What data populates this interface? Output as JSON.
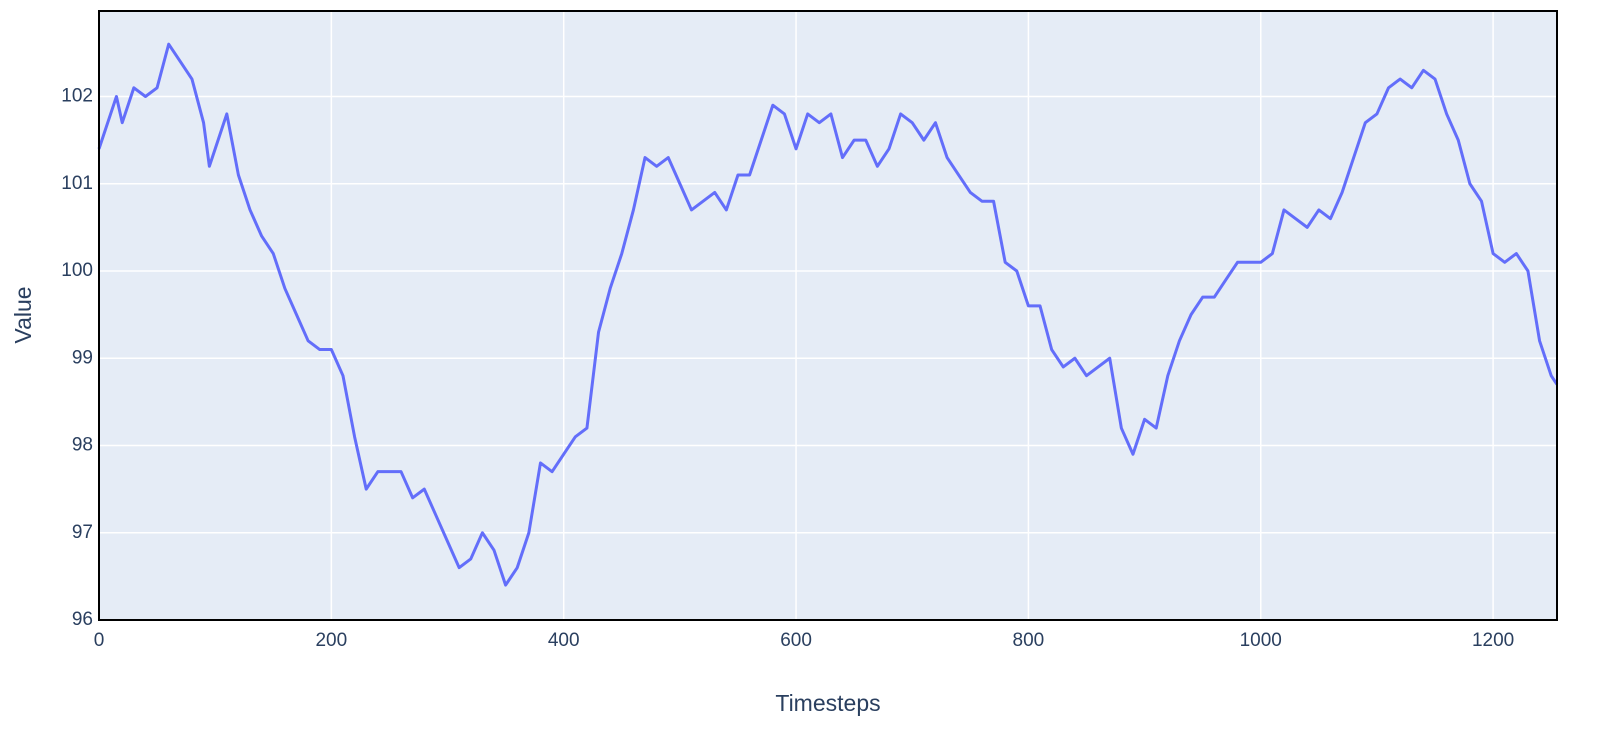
{
  "chart_data": {
    "type": "line",
    "x_label": "Timesteps",
    "y_label": "Value",
    "xlim": [
      0,
      1255
    ],
    "ylim": [
      96,
      102.98
    ],
    "xticks": [
      0,
      200,
      400,
      600,
      800,
      1000,
      1200
    ],
    "yticks": [
      96,
      97,
      98,
      99,
      100,
      101,
      102
    ],
    "grid": true,
    "series": [
      {
        "color": "#636efa",
        "x": [
          0,
          10,
          15,
          20,
          30,
          40,
          50,
          60,
          70,
          80,
          90,
          95,
          100,
          110,
          120,
          130,
          140,
          150,
          160,
          170,
          180,
          190,
          200,
          210,
          220,
          230,
          240,
          250,
          260,
          270,
          280,
          290,
          300,
          310,
          320,
          330,
          340,
          350,
          360,
          370,
          380,
          390,
          400,
          410,
          420,
          430,
          440,
          450,
          460,
          470,
          480,
          490,
          500,
          510,
          520,
          530,
          540,
          550,
          560,
          570,
          580,
          590,
          600,
          610,
          620,
          630,
          640,
          650,
          660,
          670,
          680,
          690,
          700,
          710,
          720,
          730,
          740,
          750,
          760,
          770,
          780,
          790,
          800,
          810,
          820,
          830,
          840,
          850,
          860,
          870,
          880,
          890,
          900,
          910,
          920,
          930,
          940,
          950,
          960,
          970,
          980,
          990,
          1000,
          1010,
          1020,
          1030,
          1040,
          1050,
          1060,
          1070,
          1080,
          1090,
          1100,
          1110,
          1120,
          1130,
          1140,
          1150,
          1160,
          1170,
          1180,
          1190,
          1200,
          1210,
          1220,
          1230,
          1240,
          1250,
          1255
        ],
        "values": [
          101.4,
          101.8,
          102.0,
          101.7,
          102.1,
          102.0,
          102.1,
          102.6,
          102.4,
          102.2,
          101.7,
          101.2,
          101.4,
          101.8,
          101.1,
          100.7,
          100.4,
          100.2,
          99.8,
          99.5,
          99.2,
          99.1,
          99.1,
          98.8,
          98.1,
          97.5,
          97.7,
          97.7,
          97.7,
          97.4,
          97.5,
          97.2,
          96.9,
          96.6,
          96.7,
          97.0,
          96.8,
          96.4,
          96.6,
          97.0,
          97.8,
          97.7,
          97.9,
          98.1,
          98.2,
          99.3,
          99.8,
          100.2,
          100.7,
          101.3,
          101.2,
          101.3,
          101.0,
          100.7,
          100.8,
          100.9,
          100.7,
          101.1,
          101.1,
          101.5,
          101.9,
          101.8,
          101.4,
          101.8,
          101.7,
          101.8,
          101.3,
          101.5,
          101.5,
          101.2,
          101.4,
          101.8,
          101.7,
          101.5,
          101.7,
          101.3,
          101.1,
          100.9,
          100.8,
          100.8,
          100.1,
          100.0,
          99.6,
          99.6,
          99.1,
          98.9,
          99.0,
          98.8,
          98.9,
          99.0,
          98.2,
          97.9,
          98.3,
          98.2,
          98.8,
          99.2,
          99.5,
          99.7,
          99.7,
          99.9,
          100.1,
          100.1,
          100.1,
          100.2,
          100.7,
          100.6,
          100.5,
          100.7,
          100.6,
          100.9,
          101.3,
          101.7,
          101.8,
          102.1,
          102.2,
          102.1,
          102.3,
          102.2,
          101.8,
          101.5,
          101.0,
          100.8,
          100.2,
          100.1,
          100.2,
          100.0,
          99.2,
          98.8,
          98.7
        ]
      }
    ]
  }
}
